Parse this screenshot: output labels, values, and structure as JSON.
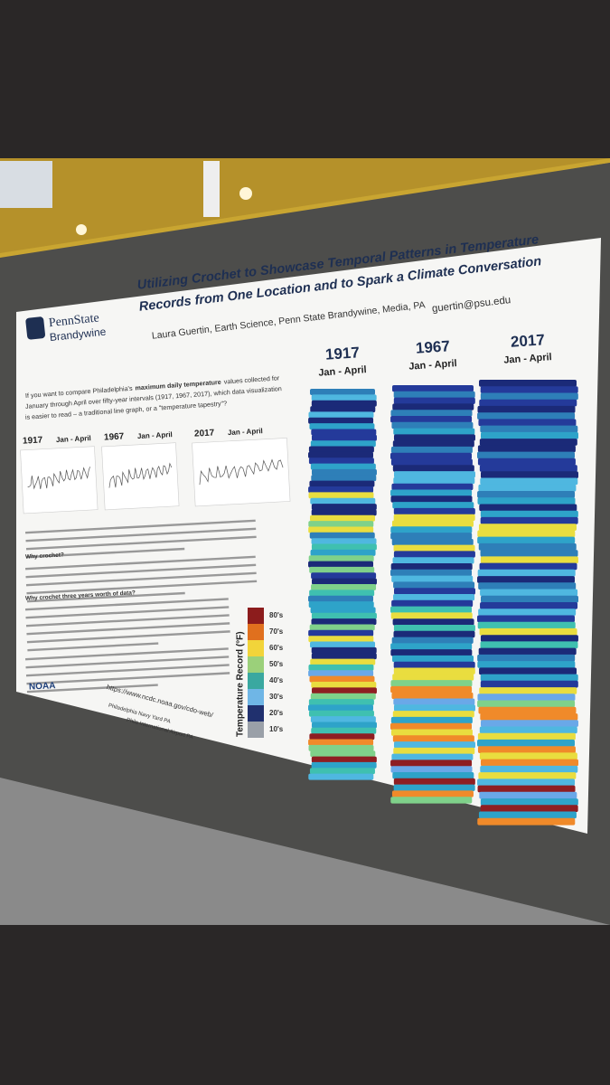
{
  "header": {
    "logo_name": "PennState",
    "logo_campus": "Brandywine",
    "title_line1": "Utilizing Crochet to Showcase Temporal Patterns in Temperature",
    "title_line2": "Records from One Location and to Spark a Climate Conversation",
    "author": "Laura Guertin, Earth Science, Penn State Brandywine, Media, PA",
    "email": "guertin@psu.edu"
  },
  "intro": [
    "If you want to compare Philadelphia's",
    "maximum daily temperature",
    "values collected for",
    "January through April over fifty-year intervals (1917, 1967, 2017), which data visualization",
    "is easier to read – a traditional line graph, or a \"temperature tapestry\"?"
  ],
  "graphs": [
    {
      "year": "1917",
      "range": "Jan - April"
    },
    {
      "year": "1967",
      "range": "Jan - April"
    },
    {
      "year": "2017",
      "range": "Jan - April"
    }
  ],
  "tapestries": [
    {
      "year": "1917",
      "range": "Jan - April"
    },
    {
      "year": "1967",
      "range": "Jan - April"
    },
    {
      "year": "2017",
      "range": "Jan - April"
    }
  ],
  "sections": [
    {
      "heading": "Why crochet?"
    },
    {
      "heading": "Why crochet three years worth of data?"
    }
  ],
  "legend": {
    "title": "Temperature Record (°F)",
    "labels": [
      "80's",
      "70's",
      "60's",
      "50's",
      "40's",
      "30's",
      "20's",
      "10's"
    ]
  },
  "footer": {
    "url": "https://www.ncdc.noaa.gov/cdo-web/",
    "station1": "Philadelphia Navy Yard PA",
    "station2": "Phila International Airport PA",
    "noaa": "NOAA"
  }
}
